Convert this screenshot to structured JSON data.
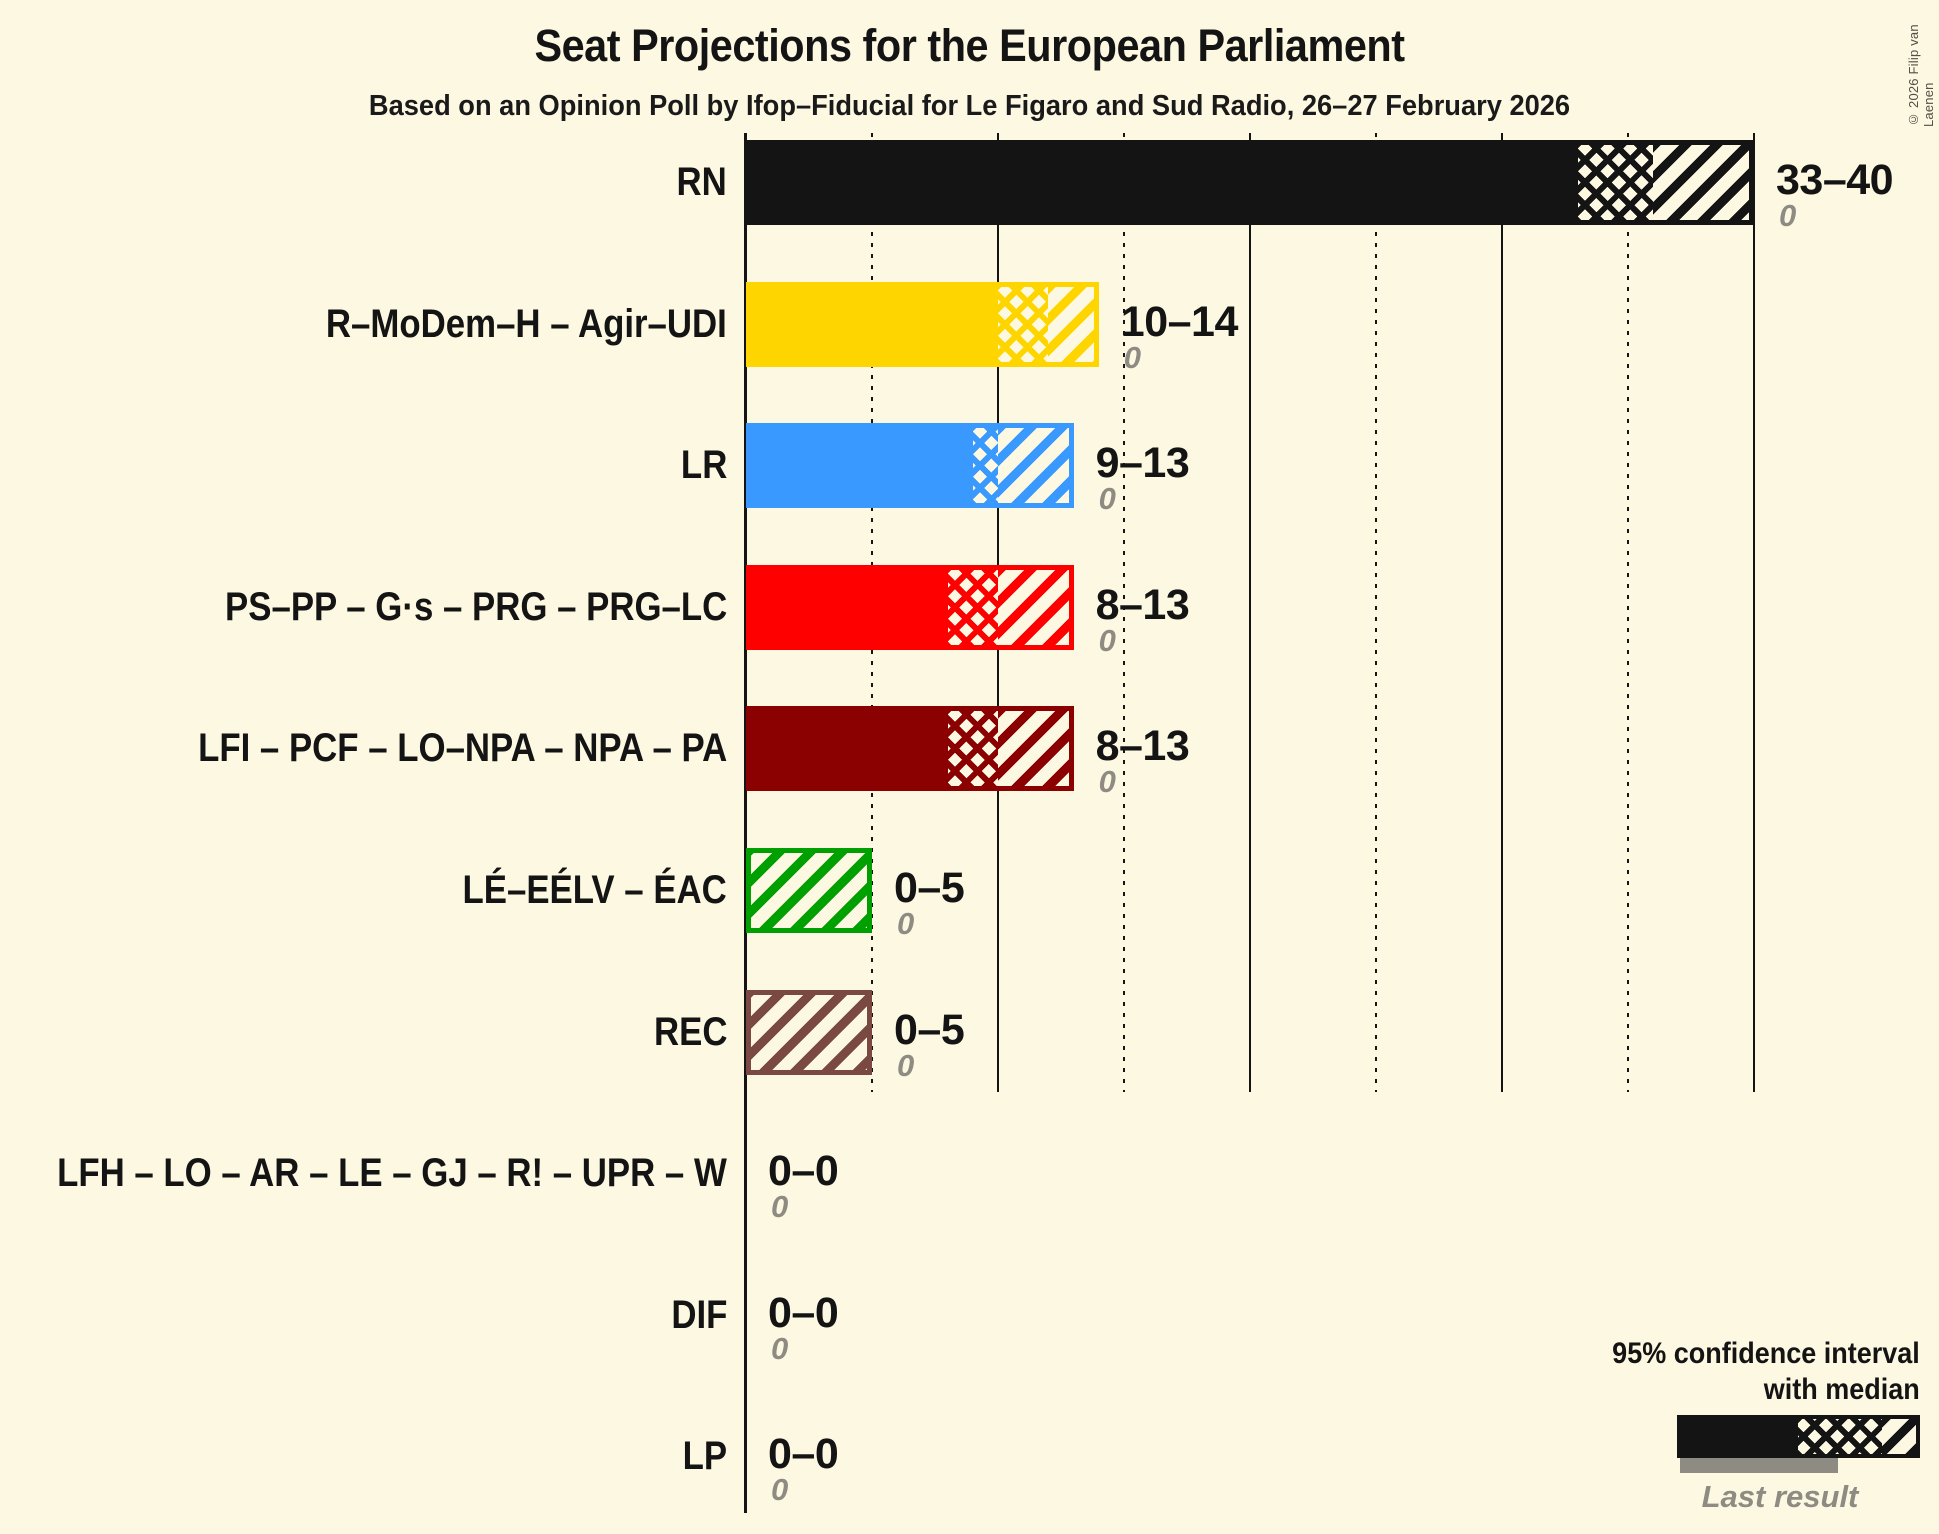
{
  "title": "Seat Projections for the European Parliament",
  "subtitle": "Based on an Opinion Poll by Ifop–Fiducial for Le Figaro and Sud Radio, 26–27 February 2026",
  "copyright": "© 2026 Filip van Laenen",
  "legend": {
    "ci_line1": "95% confidence interval",
    "ci_line2": "with median",
    "last_result_label": "Last result"
  },
  "colors": {
    "background": "#fdf8e1",
    "ink": "#141414",
    "muted_gray": "#8d8b82"
  },
  "chart_data": {
    "type": "bar",
    "orientation": "horizontal",
    "unit": "seats",
    "xlim": [
      0,
      40
    ],
    "gridlines": {
      "dotted_at": [
        5,
        15,
        25,
        35
      ],
      "solid_at": [
        10,
        20,
        30,
        40
      ]
    },
    "legend_position": "bottom-right",
    "parties": [
      {
        "label": "RN",
        "ci_low": 33,
        "median": 36,
        "ci_high": 40,
        "range_label": "33–40",
        "last_result": 0,
        "last_result_label": "0",
        "color": "#141414"
      },
      {
        "label": "R–MoDem–H – Agir–UDI",
        "ci_low": 10,
        "median": 12,
        "ci_high": 14,
        "range_label": "10–14",
        "last_result": 0,
        "last_result_label": "0",
        "color": "#ffd500"
      },
      {
        "label": "LR",
        "ci_low": 9,
        "median": 10,
        "ci_high": 13,
        "range_label": "9–13",
        "last_result": 0,
        "last_result_label": "0",
        "color": "#3a99ff"
      },
      {
        "label": "PS–PP – G·s – PRG – PRG–LC",
        "ci_low": 8,
        "median": 10,
        "ci_high": 13,
        "range_label": "8–13",
        "last_result": 0,
        "last_result_label": "0",
        "color": "#ff0000"
      },
      {
        "label": "LFI – PCF – LO–NPA – NPA – PA",
        "ci_low": 8,
        "median": 10,
        "ci_high": 13,
        "range_label": "8–13",
        "last_result": 0,
        "last_result_label": "0",
        "color": "#8b0000"
      },
      {
        "label": "LÉ–EÉLV – ÉAC",
        "ci_low": 0,
        "median": 0,
        "ci_high": 5,
        "range_label": "0–5",
        "last_result": 0,
        "last_result_label": "0",
        "color": "#00a000"
      },
      {
        "label": "REC",
        "ci_low": 0,
        "median": 0,
        "ci_high": 5,
        "range_label": "0–5",
        "last_result": 0,
        "last_result_label": "0",
        "color": "#7a4a42"
      },
      {
        "label": "LFH – LO – AR – LE – GJ – R! – UPR – W",
        "ci_low": 0,
        "median": 0,
        "ci_high": 0,
        "range_label": "0–0",
        "last_result": 0,
        "last_result_label": "0",
        "color": null
      },
      {
        "label": "DIF",
        "ci_low": 0,
        "median": 0,
        "ci_high": 0,
        "range_label": "0–0",
        "last_result": 0,
        "last_result_label": "0",
        "color": null
      },
      {
        "label": "LP",
        "ci_low": 0,
        "median": 0,
        "ci_high": 0,
        "range_label": "0–0",
        "last_result": 0,
        "last_result_label": "0",
        "color": null
      }
    ]
  }
}
